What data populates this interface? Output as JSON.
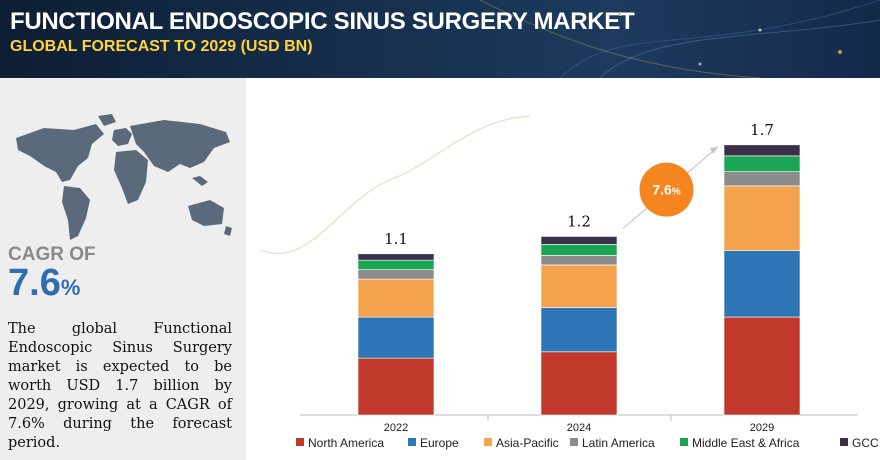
{
  "header": {
    "title": "FUNCTIONAL ENDOSCOPIC SINUS SURGERY MARKET",
    "subtitle": "GLOBAL FORECAST TO 2029 (USD BN)"
  },
  "left_panel": {
    "cagr_label": "CAGR OF",
    "cagr_number": "7.6",
    "cagr_unit": "%",
    "description": "The global Functional Endoscopic Sinus Surgery market is expected to be worth USD 1.7 billion by 2029, growing at a CAGR of 7.6% during the forecast period."
  },
  "chart_data": {
    "type": "bar",
    "stacked": true,
    "categories": [
      "2022",
      "2024",
      "2029"
    ],
    "totals": [
      "1.1",
      "1.2",
      "1.7"
    ],
    "series": [
      {
        "name": "North America",
        "color": "#c0392b",
        "values": [
          0.36,
          0.4,
          0.62
        ]
      },
      {
        "name": "Europe",
        "color": "#2e75b6",
        "values": [
          0.26,
          0.28,
          0.42
        ]
      },
      {
        "name": "Asia-Pacific",
        "color": "#f4a24e",
        "values": [
          0.24,
          0.27,
          0.41
        ]
      },
      {
        "name": "Latin America",
        "color": "#8c8c8c",
        "values": [
          0.06,
          0.06,
          0.09
        ]
      },
      {
        "name": "Middle East & Africa",
        "color": "#1aa552",
        "values": [
          0.06,
          0.07,
          0.1
        ]
      },
      {
        "name": "GCC",
        "color": "#3b2f4a",
        "values": [
          0.04,
          0.05,
          0.07
        ]
      }
    ],
    "cagr_badge": {
      "number": "7.6",
      "unit": "%",
      "color": "#f5861f"
    },
    "legend_position": "bottom",
    "grid": false
  }
}
